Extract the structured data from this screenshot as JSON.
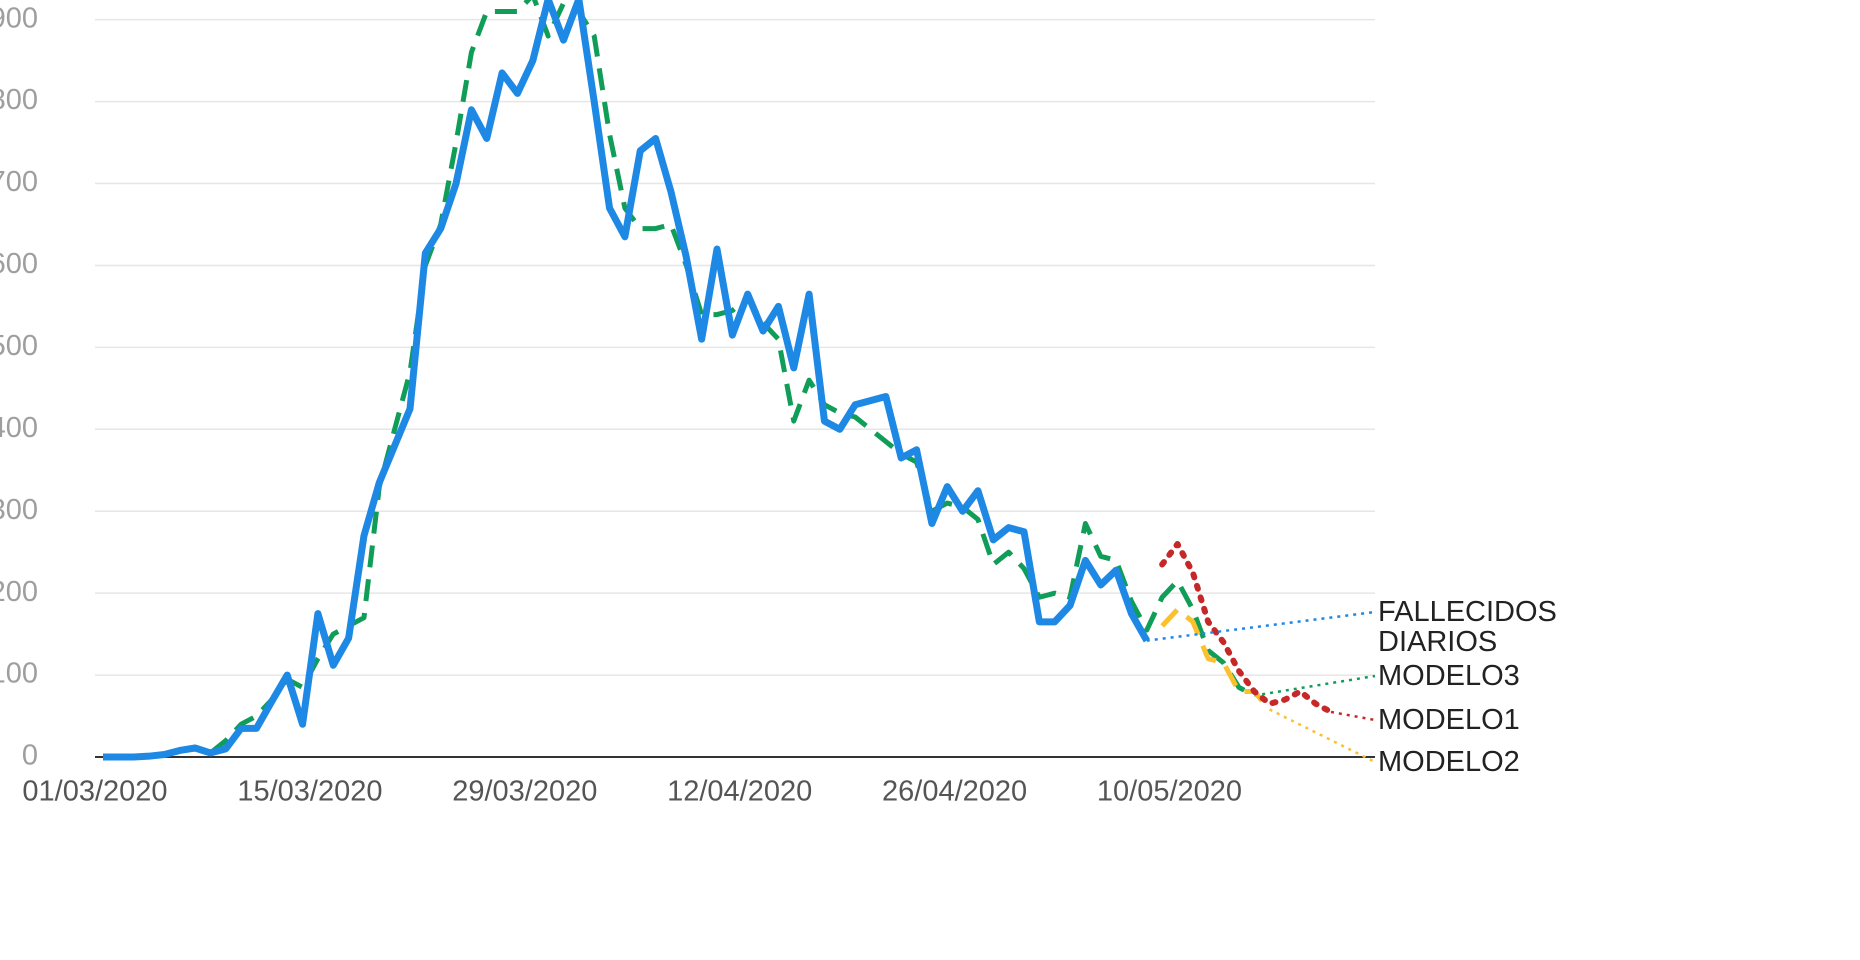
{
  "chart_data": {
    "type": "line",
    "categories": [
      "01/03/2020",
      null,
      null,
      null,
      null,
      null,
      null,
      null,
      null,
      null,
      null,
      null,
      null,
      null,
      "15/03/2020",
      null,
      null,
      null,
      null,
      null,
      null,
      null,
      null,
      null,
      null,
      null,
      null,
      null,
      "29/03/2020",
      null,
      null,
      null,
      null,
      null,
      null,
      null,
      null,
      null,
      null,
      null,
      null,
      null,
      "12/04/2020",
      null,
      null,
      null,
      null,
      null,
      null,
      null,
      null,
      null,
      null,
      null,
      null,
      null,
      "26/04/2020",
      null,
      null,
      null,
      null,
      null,
      null,
      null,
      null,
      null,
      null,
      null,
      null,
      null,
      "10/05/2020",
      null,
      null,
      null,
      null,
      null,
      null,
      null,
      null,
      null,
      null
    ],
    "ylim": [
      0,
      924
    ],
    "yticks": [
      0,
      100,
      200,
      300,
      400,
      500,
      600,
      700,
      800,
      900
    ],
    "grid": true,
    "series": [
      {
        "name": "FALLECIDOS DIARIOS",
        "color": "#1e88e5",
        "style": "solid",
        "values": [
          0,
          0,
          0,
          1,
          3,
          8,
          11,
          5,
          10,
          35,
          35,
          68,
          100,
          40,
          175,
          112,
          145,
          270,
          335,
          380,
          425,
          615,
          645,
          700,
          790,
          755,
          835,
          810,
          850,
          925,
          875,
          925,
          800,
          670,
          635,
          740,
          755,
          690,
          610,
          510,
          620,
          515,
          565,
          520,
          550,
          475,
          565,
          410,
          400,
          430,
          435,
          440,
          365,
          375,
          285,
          330,
          300,
          325,
          265,
          280,
          275,
          165,
          165,
          185,
          240,
          210,
          228,
          175,
          142,
          null,
          null,
          null,
          null,
          null,
          null,
          null,
          null,
          null,
          null,
          null,
          null
        ]
      },
      {
        "name": "MODELO3",
        "color": "#0f9d58",
        "style": "dashed",
        "values": [
          null,
          null,
          null,
          null,
          null,
          null,
          null,
          5,
          20,
          40,
          50,
          70,
          95,
          85,
          120,
          150,
          160,
          170,
          330,
          400,
          470,
          600,
          650,
          750,
          860,
          910,
          910,
          910,
          930,
          880,
          920,
          910,
          880,
          760,
          670,
          645,
          645,
          650,
          600,
          540,
          540,
          545,
          560,
          530,
          510,
          410,
          460,
          430,
          420,
          415,
          400,
          385,
          370,
          360,
          300,
          310,
          305,
          290,
          235,
          250,
          230,
          195,
          200,
          195,
          285,
          245,
          240,
          190,
          155,
          195,
          215,
          180,
          130,
          115,
          85,
          75,
          null,
          null,
          null,
          null,
          null
        ]
      },
      {
        "name": "MODELO1",
        "color": "#c62828",
        "style": "dotted",
        "values": [
          null,
          null,
          null,
          null,
          null,
          null,
          null,
          null,
          null,
          null,
          null,
          null,
          null,
          null,
          null,
          null,
          null,
          null,
          null,
          null,
          null,
          null,
          null,
          null,
          null,
          null,
          null,
          null,
          null,
          null,
          null,
          null,
          null,
          null,
          null,
          null,
          null,
          null,
          null,
          null,
          null,
          null,
          null,
          null,
          null,
          null,
          null,
          null,
          null,
          null,
          null,
          null,
          null,
          null,
          null,
          null,
          null,
          null,
          null,
          null,
          null,
          null,
          null,
          null,
          null,
          null,
          null,
          null,
          null,
          235,
          260,
          225,
          165,
          140,
          105,
          80,
          65,
          70,
          80,
          65,
          55
        ]
      },
      {
        "name": "MODELO2",
        "color": "#fbc02d",
        "style": "dashed",
        "values": [
          null,
          null,
          null,
          null,
          null,
          null,
          null,
          null,
          null,
          null,
          null,
          null,
          null,
          null,
          null,
          null,
          null,
          null,
          null,
          null,
          null,
          null,
          null,
          null,
          null,
          null,
          null,
          null,
          null,
          null,
          null,
          null,
          null,
          null,
          null,
          null,
          null,
          null,
          null,
          null,
          null,
          null,
          null,
          null,
          null,
          null,
          null,
          null,
          null,
          null,
          null,
          null,
          null,
          null,
          null,
          null,
          null,
          null,
          null,
          null,
          null,
          null,
          null,
          null,
          null,
          null,
          null,
          null,
          null,
          160,
          180,
          165,
          120,
          115,
          80,
          80,
          58,
          null,
          null,
          null,
          null
        ]
      }
    ]
  }
}
